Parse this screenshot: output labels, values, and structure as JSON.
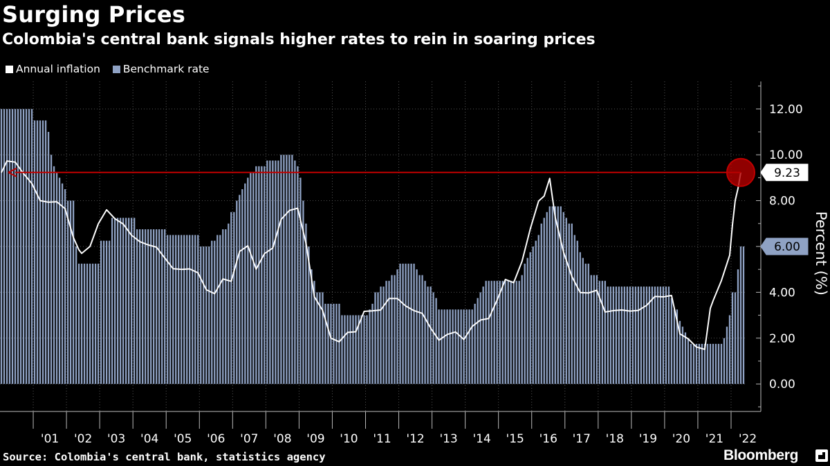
{
  "header": {
    "title": "Surging Prices",
    "subtitle": "Colombia's central bank signals higher rates to rein in soaring prices"
  },
  "legend": {
    "inflation_label": "Annual inflation",
    "rate_label": "Benchmark rate"
  },
  "footer": {
    "source": "Source: Colombia's central bank, statistics agency",
    "brand": "Bloomberg"
  },
  "colors": {
    "background": "#000000",
    "inflation": "#ffffff",
    "rate": "#8fa2c4",
    "highlight": "#c00000",
    "grid": "#555555"
  },
  "chart_data": {
    "type": "bar",
    "ylabel": "Percent (%)",
    "ylim": [
      -1.2,
      13.2
    ],
    "yticks": [
      0,
      2,
      4,
      6,
      8,
      10,
      12
    ],
    "ytick_labels": [
      "0.00",
      "2.00",
      "4.00",
      "6.00",
      "8.00",
      "10.00",
      "12.00"
    ],
    "x_start": "2000-01",
    "x_end": "2022-05",
    "xtick_labels": [
      "'01",
      "'02",
      "'03",
      "'04",
      "'05",
      "'06",
      "'07",
      "'08",
      "'09",
      "'10",
      "'11",
      "'12",
      "'13",
      "'14",
      "'15",
      "'16",
      "'17",
      "'18",
      "'19",
      "'20",
      "'21",
      "'22"
    ],
    "grid": true,
    "legend_position": "top-left",
    "series": [
      {
        "name": "Benchmark rate",
        "kind": "bar",
        "points": [
          [
            "2000-01",
            12.0
          ],
          [
            "2000-12",
            12.0
          ],
          [
            "2001-01",
            11.5
          ],
          [
            "2001-05",
            11.5
          ],
          [
            "2001-06",
            11.0
          ],
          [
            "2001-07",
            10.0
          ],
          [
            "2001-08",
            9.5
          ],
          [
            "2001-09",
            9.25
          ],
          [
            "2001-10",
            9.0
          ],
          [
            "2001-11",
            8.75
          ],
          [
            "2001-12",
            8.5
          ],
          [
            "2002-01",
            8.0
          ],
          [
            "2002-03",
            8.0
          ],
          [
            "2002-04",
            6.0
          ],
          [
            "2002-05",
            5.25
          ],
          [
            "2002-12",
            5.25
          ],
          [
            "2003-01",
            6.25
          ],
          [
            "2003-04",
            6.25
          ],
          [
            "2003-05",
            7.25
          ],
          [
            "2003-12",
            7.25
          ],
          [
            "2004-01",
            7.25
          ],
          [
            "2004-02",
            6.75
          ],
          [
            "2004-12",
            6.75
          ],
          [
            "2005-01",
            6.5
          ],
          [
            "2005-12",
            6.5
          ],
          [
            "2006-01",
            6.0
          ],
          [
            "2006-04",
            6.0
          ],
          [
            "2006-05",
            6.25
          ],
          [
            "2006-07",
            6.5
          ],
          [
            "2006-09",
            6.75
          ],
          [
            "2006-11",
            7.0
          ],
          [
            "2006-12",
            7.5
          ],
          [
            "2007-02",
            8.0
          ],
          [
            "2007-03",
            8.25
          ],
          [
            "2007-04",
            8.5
          ],
          [
            "2007-05",
            8.75
          ],
          [
            "2007-06",
            9.0
          ],
          [
            "2007-07",
            9.25
          ],
          [
            "2007-09",
            9.5
          ],
          [
            "2007-12",
            9.5
          ],
          [
            "2008-01",
            9.75
          ],
          [
            "2008-06",
            10.0
          ],
          [
            "2008-10",
            10.0
          ],
          [
            "2008-11",
            9.75
          ],
          [
            "2008-12",
            9.5
          ],
          [
            "2009-01",
            9.0
          ],
          [
            "2009-02",
            8.0
          ],
          [
            "2009-03",
            7.0
          ],
          [
            "2009-04",
            6.0
          ],
          [
            "2009-05",
            5.0
          ],
          [
            "2009-06",
            4.5
          ],
          [
            "2009-07",
            4.0
          ],
          [
            "2009-09",
            4.0
          ],
          [
            "2009-10",
            3.5
          ],
          [
            "2010-03",
            3.5
          ],
          [
            "2010-04",
            3.0
          ],
          [
            "2011-01",
            3.0
          ],
          [
            "2011-02",
            3.25
          ],
          [
            "2011-03",
            3.5
          ],
          [
            "2011-04",
            4.0
          ],
          [
            "2011-06",
            4.25
          ],
          [
            "2011-08",
            4.5
          ],
          [
            "2011-10",
            4.75
          ],
          [
            "2011-12",
            5.0
          ],
          [
            "2012-01",
            5.25
          ],
          [
            "2012-06",
            5.25
          ],
          [
            "2012-07",
            5.0
          ],
          [
            "2012-08",
            4.75
          ],
          [
            "2012-09",
            4.75
          ],
          [
            "2012-10",
            4.5
          ],
          [
            "2012-11",
            4.25
          ],
          [
            "2012-12",
            4.25
          ],
          [
            "2013-01",
            4.0
          ],
          [
            "2013-02",
            3.75
          ],
          [
            "2013-03",
            3.25
          ],
          [
            "2013-12",
            3.25
          ],
          [
            "2014-03",
            3.25
          ],
          [
            "2014-04",
            3.5
          ],
          [
            "2014-05",
            3.75
          ],
          [
            "2014-06",
            4.0
          ],
          [
            "2014-07",
            4.25
          ],
          [
            "2014-08",
            4.5
          ],
          [
            "2015-08",
            4.5
          ],
          [
            "2015-09",
            4.75
          ],
          [
            "2015-10",
            5.25
          ],
          [
            "2015-11",
            5.5
          ],
          [
            "2015-12",
            5.75
          ],
          [
            "2016-01",
            6.0
          ],
          [
            "2016-02",
            6.25
          ],
          [
            "2016-03",
            6.5
          ],
          [
            "2016-04",
            7.0
          ],
          [
            "2016-05",
            7.25
          ],
          [
            "2016-06",
            7.5
          ],
          [
            "2016-07",
            7.75
          ],
          [
            "2016-11",
            7.75
          ],
          [
            "2016-12",
            7.5
          ],
          [
            "2017-01",
            7.25
          ],
          [
            "2017-02",
            7.0
          ],
          [
            "2017-03",
            7.0
          ],
          [
            "2017-04",
            6.5
          ],
          [
            "2017-05",
            6.25
          ],
          [
            "2017-06",
            5.75
          ],
          [
            "2017-07",
            5.5
          ],
          [
            "2017-08",
            5.25
          ],
          [
            "2017-09",
            5.25
          ],
          [
            "2017-10",
            4.75
          ],
          [
            "2017-11",
            4.75
          ],
          [
            "2017-12",
            4.75
          ],
          [
            "2018-01",
            4.5
          ],
          [
            "2018-04",
            4.25
          ],
          [
            "2020-02",
            4.25
          ],
          [
            "2020-03",
            3.75
          ],
          [
            "2020-04",
            3.25
          ],
          [
            "2020-05",
            3.25
          ],
          [
            "2020-06",
            2.75
          ],
          [
            "2020-07",
            2.5
          ],
          [
            "2020-08",
            2.25
          ],
          [
            "2020-09",
            2.0
          ],
          [
            "2020-10",
            1.75
          ],
          [
            "2021-08",
            1.75
          ],
          [
            "2021-09",
            1.75
          ],
          [
            "2021-10",
            2.0
          ],
          [
            "2021-11",
            2.5
          ],
          [
            "2021-12",
            3.0
          ],
          [
            "2022-01",
            4.0
          ],
          [
            "2022-02",
            4.0
          ],
          [
            "2022-03",
            5.0
          ],
          [
            "2022-04",
            6.0
          ],
          [
            "2022-05",
            6.0
          ]
        ]
      },
      {
        "name": "Annual inflation",
        "kind": "line",
        "points": [
          [
            "2000-01",
            9.22
          ],
          [
            "2000-03",
            9.73
          ],
          [
            "2000-06",
            9.68
          ],
          [
            "2000-09",
            9.18
          ],
          [
            "2000-12",
            8.75
          ],
          [
            "2001-03",
            8.0
          ],
          [
            "2001-06",
            7.93
          ],
          [
            "2001-09",
            7.95
          ],
          [
            "2001-12",
            7.65
          ],
          [
            "2002-03",
            6.39
          ],
          [
            "2002-05",
            5.85
          ],
          [
            "2002-06",
            5.7
          ],
          [
            "2002-09",
            6.0
          ],
          [
            "2002-12",
            6.99
          ],
          [
            "2003-03",
            7.6
          ],
          [
            "2003-06",
            7.21
          ],
          [
            "2003-09",
            6.98
          ],
          [
            "2003-12",
            6.49
          ],
          [
            "2004-03",
            6.21
          ],
          [
            "2004-06",
            6.07
          ],
          [
            "2004-09",
            5.97
          ],
          [
            "2004-12",
            5.5
          ],
          [
            "2005-03",
            5.03
          ],
          [
            "2005-06",
            5.0
          ],
          [
            "2005-09",
            5.02
          ],
          [
            "2005-12",
            4.85
          ],
          [
            "2006-03",
            4.11
          ],
          [
            "2006-06",
            3.94
          ],
          [
            "2006-09",
            4.58
          ],
          [
            "2006-12",
            4.48
          ],
          [
            "2007-03",
            5.78
          ],
          [
            "2007-06",
            6.03
          ],
          [
            "2007-09",
            5.01
          ],
          [
            "2007-12",
            5.69
          ],
          [
            "2008-03",
            5.93
          ],
          [
            "2008-06",
            7.18
          ],
          [
            "2008-09",
            7.57
          ],
          [
            "2008-12",
            7.67
          ],
          [
            "2009-03",
            6.14
          ],
          [
            "2009-06",
            3.81
          ],
          [
            "2009-09",
            3.21
          ],
          [
            "2009-12",
            2.0
          ],
          [
            "2010-03",
            1.84
          ],
          [
            "2010-06",
            2.25
          ],
          [
            "2010-09",
            2.28
          ],
          [
            "2010-12",
            3.17
          ],
          [
            "2011-03",
            3.19
          ],
          [
            "2011-06",
            3.23
          ],
          [
            "2011-09",
            3.73
          ],
          [
            "2011-12",
            3.73
          ],
          [
            "2012-03",
            3.4
          ],
          [
            "2012-06",
            3.2
          ],
          [
            "2012-09",
            3.08
          ],
          [
            "2012-12",
            2.44
          ],
          [
            "2013-03",
            1.91
          ],
          [
            "2013-06",
            2.16
          ],
          [
            "2013-09",
            2.27
          ],
          [
            "2013-12",
            1.94
          ],
          [
            "2014-03",
            2.51
          ],
          [
            "2014-06",
            2.79
          ],
          [
            "2014-09",
            2.86
          ],
          [
            "2014-12",
            3.66
          ],
          [
            "2015-03",
            4.56
          ],
          [
            "2015-06",
            4.42
          ],
          [
            "2015-09",
            5.35
          ],
          [
            "2015-12",
            6.77
          ],
          [
            "2016-03",
            7.98
          ],
          [
            "2016-05",
            8.2
          ],
          [
            "2016-07",
            8.97
          ],
          [
            "2016-09",
            7.27
          ],
          [
            "2016-12",
            5.75
          ],
          [
            "2017-03",
            4.69
          ],
          [
            "2017-06",
            3.99
          ],
          [
            "2017-09",
            3.97
          ],
          [
            "2017-12",
            4.09
          ],
          [
            "2018-03",
            3.14
          ],
          [
            "2018-06",
            3.2
          ],
          [
            "2018-09",
            3.23
          ],
          [
            "2018-12",
            3.18
          ],
          [
            "2019-03",
            3.21
          ],
          [
            "2019-06",
            3.43
          ],
          [
            "2019-09",
            3.82
          ],
          [
            "2019-12",
            3.8
          ],
          [
            "2020-03",
            3.86
          ],
          [
            "2020-06",
            2.19
          ],
          [
            "2020-09",
            1.97
          ],
          [
            "2020-12",
            1.61
          ],
          [
            "2021-03",
            1.51
          ],
          [
            "2021-05",
            3.3
          ],
          [
            "2021-06",
            3.63
          ],
          [
            "2021-09",
            4.51
          ],
          [
            "2021-12",
            5.62
          ],
          [
            "2022-01",
            6.94
          ],
          [
            "2022-02",
            8.01
          ],
          [
            "2022-03",
            8.53
          ],
          [
            "2022-04",
            9.23
          ]
        ]
      }
    ],
    "annotations": [
      {
        "label": "9.23",
        "value": 9.23,
        "series": "Annual inflation"
      },
      {
        "label": "6.00",
        "value": 6.0,
        "series": "Benchmark rate"
      }
    ]
  }
}
